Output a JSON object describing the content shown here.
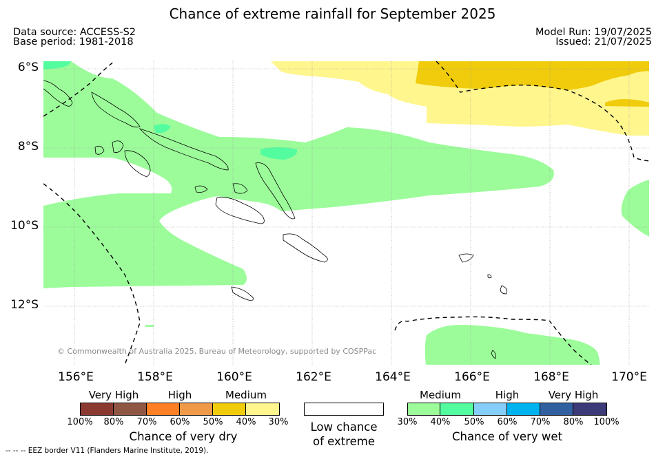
{
  "title": "Chance of extreme rainfall for September 2025",
  "meta": {
    "data_source": "Data source: ACCESS-S2",
    "base_period": "Base period: 1981-2018",
    "model_run": "Model Run: 19/07/2025",
    "issued": "Issued: 21/07/2025"
  },
  "map": {
    "lat_ticks": [
      "6°S",
      "8°S",
      "10°S",
      "12°S"
    ],
    "lon_ticks": [
      "156°E",
      "158°E",
      "160°E",
      "162°E",
      "164°E",
      "166°E",
      "168°E",
      "170°E"
    ],
    "copyright": "© Commonwealth of Australia 2025, Bureau of Meteorology, supported by COSPPac",
    "colors": {
      "medium_wet": "#9cfc9a",
      "high_wet": "#52fc9f",
      "high_dry": "#f0cc0c",
      "medium_dry": "#fff68e",
      "land_outline": "#000000",
      "eez_border": "#000000",
      "gridline": "#999999"
    }
  },
  "legend": {
    "dry": {
      "categories": [
        "Very High",
        "High",
        "Medium"
      ],
      "percents": [
        "100%",
        "80%",
        "70%",
        "60%",
        "50%",
        "40%",
        "30%"
      ],
      "colors": [
        "#8b3a32",
        "#8f5643",
        "#ff7f24",
        "#ef9a48",
        "#f0cc0c",
        "#fff68e"
      ],
      "title": "Chance of very dry"
    },
    "neutral": {
      "line1": "Low chance",
      "line2": "of extreme"
    },
    "wet": {
      "categories": [
        "Medium",
        "High",
        "Very High"
      ],
      "percents": [
        "30%",
        "40%",
        "50%",
        "60%",
        "70%",
        "80%",
        "100%"
      ],
      "colors": [
        "#9cfc9a",
        "#52fc9f",
        "#86cefa",
        "#00b2ee",
        "#3060a0",
        "#3c3a78"
      ],
      "title": "Chance of very wet"
    }
  },
  "footnote": "--  --  -- EEZ border V11 (Flanders Marine Institute, 2019)."
}
